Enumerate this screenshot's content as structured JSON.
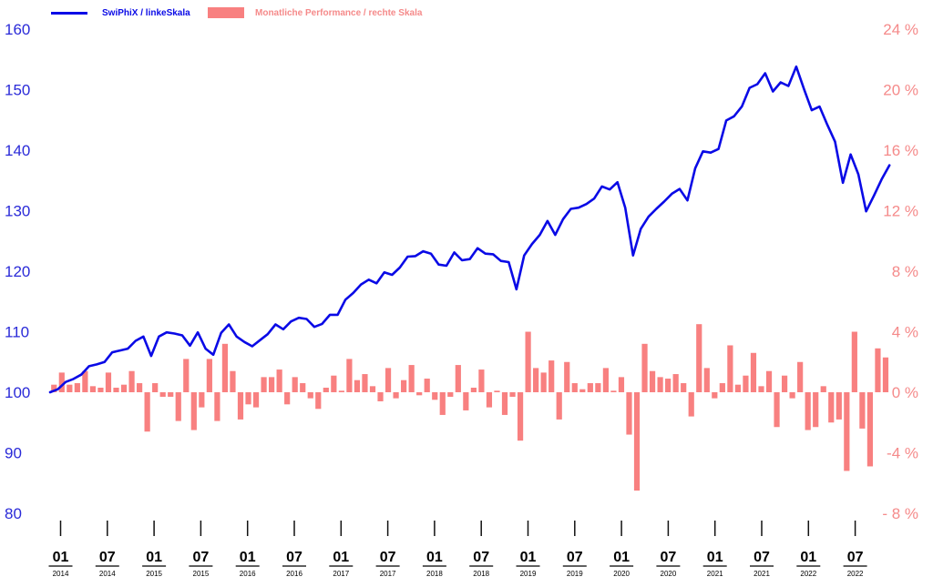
{
  "colors": {
    "index_line": "#0A0AE6",
    "bars": "#F88080",
    "left_axis": "#2A2AD8",
    "right_axis": "#F58A8A",
    "ticks": "#111111"
  },
  "legend": {
    "line_label": "SwiPhiX / linkeSkala",
    "bar_label": "Monatliche Performance / rechte Skala"
  },
  "chart_data": {
    "type": "line+bar",
    "left_axis": {
      "ylim": [
        80,
        160
      ],
      "ticks": [
        80,
        90,
        100,
        110,
        120,
        130,
        140,
        150,
        160
      ]
    },
    "right_axis": {
      "ylim": [
        -8,
        24
      ],
      "ticks": [
        -8,
        -4,
        0,
        4,
        8,
        12,
        16,
        20,
        24
      ],
      "tick_labels": [
        "- 8 %",
        "-4 %",
        "0 %",
        "4 %",
        "8 %",
        "12 %",
        "16 %",
        "20 %",
        "24 %"
      ]
    },
    "x_ticks": [
      {
        "m": "01",
        "y": "2014"
      },
      {
        "m": "07",
        "y": "2014"
      },
      {
        "m": "01",
        "y": "2015"
      },
      {
        "m": "07",
        "y": "2015"
      },
      {
        "m": "01",
        "y": "2016"
      },
      {
        "m": "07",
        "y": "2016"
      },
      {
        "m": "01",
        "y": "2017"
      },
      {
        "m": "07",
        "y": "2017"
      },
      {
        "m": "01",
        "y": "2018"
      },
      {
        "m": "07",
        "y": "2018"
      },
      {
        "m": "01",
        "y": "2019"
      },
      {
        "m": "07",
        "y": "2019"
      },
      {
        "m": "01",
        "y": "2020"
      },
      {
        "m": "07",
        "y": "2020"
      },
      {
        "m": "01",
        "y": "2021"
      },
      {
        "m": "07",
        "y": "2021"
      },
      {
        "m": "01",
        "y": "2022"
      },
      {
        "m": "07",
        "y": "2022"
      }
    ],
    "series": [
      {
        "name": "SwiPhiX / linkeSkala",
        "type": "line",
        "axis": "left",
        "values": [
          100.0,
          100.5,
          101.7,
          102.2,
          102.9,
          104.3,
          104.6,
          105.0,
          106.6,
          106.9,
          107.2,
          108.5,
          109.2,
          106.0,
          109.2,
          109.9,
          109.7,
          109.4,
          107.7,
          109.9,
          107.2,
          106.2,
          109.8,
          111.2,
          109.2,
          108.3,
          107.6,
          108.6,
          109.6,
          111.2,
          110.4,
          111.7,
          112.3,
          112.1,
          110.8,
          111.3,
          112.8,
          112.8,
          115.3,
          116.4,
          117.8,
          118.6,
          118.0,
          119.8,
          119.4,
          120.6,
          122.4,
          122.5,
          123.3,
          122.9,
          121.1,
          120.9,
          123.1,
          121.8,
          122.0,
          123.8,
          122.9,
          122.8,
          121.7,
          121.5,
          117.0,
          122.6,
          124.5,
          126.0,
          128.3,
          126.0,
          128.6,
          130.3,
          130.5,
          131.1,
          132.0,
          134.0,
          133.5,
          134.7,
          130.5,
          122.6,
          127.0,
          129.0,
          130.3,
          131.5,
          132.8,
          133.6,
          131.7,
          137.0,
          139.8,
          139.6,
          140.2,
          144.9,
          145.6,
          147.2,
          150.3,
          150.9,
          152.7,
          149.7,
          151.2,
          150.6,
          153.8,
          150.1,
          146.6,
          147.2,
          144.2,
          141.4,
          134.6,
          139.3,
          136.0,
          129.9,
          132.5,
          135.2,
          137.5
        ]
      },
      {
        "name": "Monatliche Performance / rechte Skala",
        "type": "bar",
        "axis": "right",
        "unit": "%",
        "values": [
          0.5,
          1.3,
          0.5,
          0.6,
          1.4,
          0.4,
          0.3,
          1.3,
          0.3,
          0.5,
          1.4,
          0.6,
          -2.6,
          0.6,
          -0.3,
          -0.3,
          -1.9,
          2.2,
          -2.5,
          -1.0,
          2.2,
          -1.9,
          3.2,
          1.4,
          -1.8,
          -0.8,
          -1.0,
          1.0,
          1.0,
          1.5,
          -0.8,
          1.0,
          0.6,
          -0.4,
          -1.1,
          0.3,
          1.1,
          0.1,
          2.2,
          0.8,
          1.2,
          0.4,
          -0.6,
          1.6,
          -0.4,
          0.8,
          1.8,
          -0.2,
          0.9,
          -0.5,
          -1.5,
          -0.3,
          1.8,
          -1.2,
          0.3,
          1.5,
          -1.0,
          0.1,
          -1.5,
          -0.3,
          -3.2,
          4.0,
          1.6,
          1.3,
          2.1,
          -1.8,
          2.0,
          0.6,
          0.2,
          0.6,
          0.6,
          1.6,
          0.1,
          1.0,
          -2.8,
          -6.5,
          3.2,
          1.4,
          1.0,
          0.9,
          1.2,
          0.6,
          -1.6,
          4.5,
          1.6,
          -0.4,
          0.6,
          3.1,
          0.5,
          1.1,
          2.6,
          0.4,
          1.4,
          -2.3,
          1.1,
          -0.4,
          2.0,
          -2.5,
          -2.3,
          0.4,
          -2.0,
          -1.8,
          -5.2,
          4.0,
          -2.4,
          -4.9,
          2.9,
          2.3
        ]
      }
    ]
  }
}
